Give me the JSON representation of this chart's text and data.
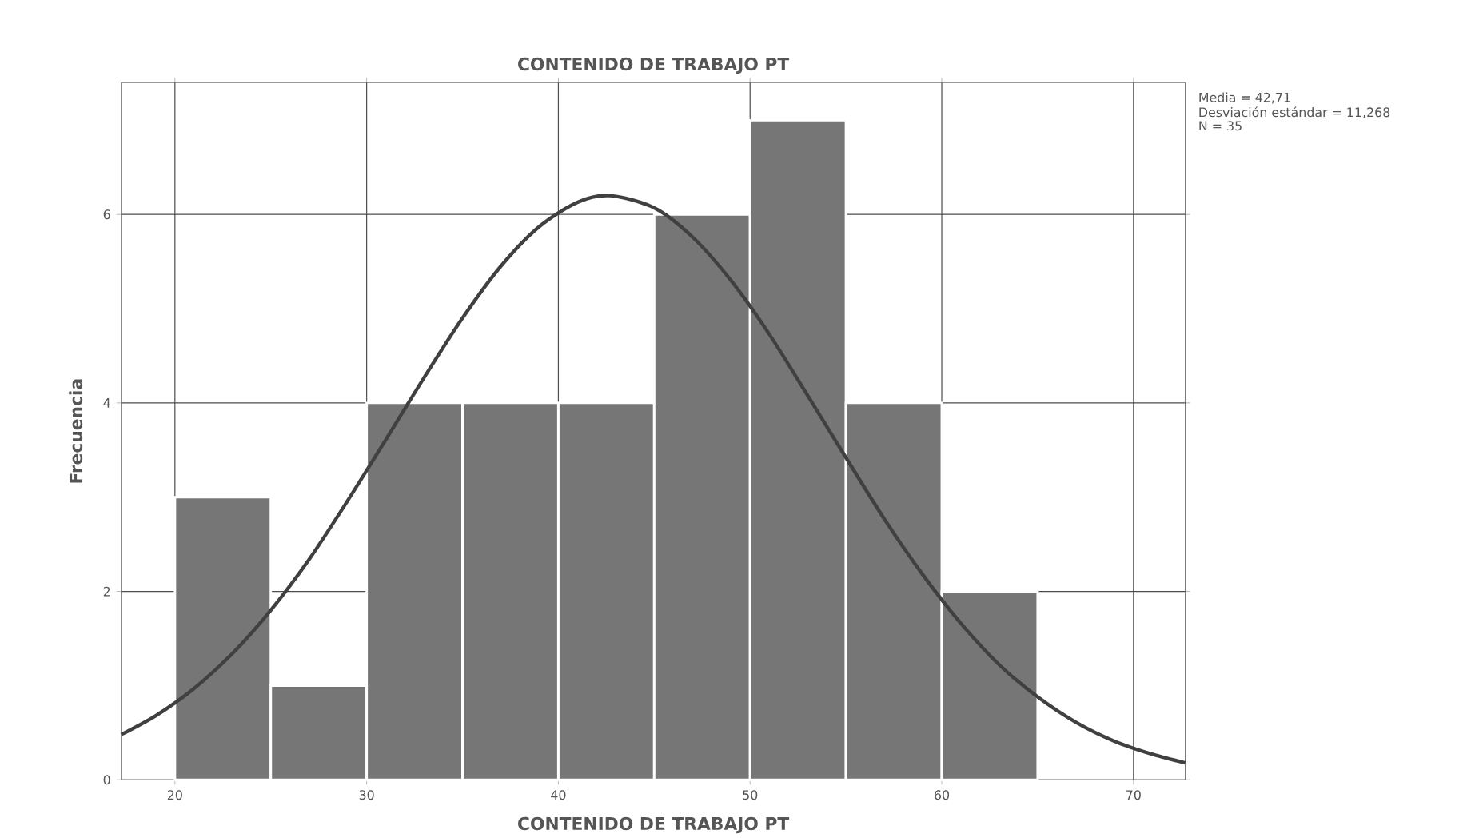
{
  "chart_data": {
    "type": "histogram",
    "title": "CONTENIDO DE TRABAJO PT",
    "xlabel": "CONTENIDO DE TRABAJO PT",
    "ylabel": "Frecuencia",
    "bins": [
      20,
      25,
      30,
      35,
      40,
      45,
      50,
      55,
      60,
      65
    ],
    "values": [
      3,
      1,
      4,
      4,
      4,
      6,
      7,
      4,
      2
    ],
    "color": "#767676",
    "series": [
      {
        "type": "line",
        "color": "#404040",
        "x": [
          17.2,
          19,
          21,
          23,
          25,
          27,
          29,
          31,
          33,
          35,
          37,
          39,
          41,
          42.7,
          45,
          47,
          49,
          51,
          53,
          55,
          57,
          59,
          61,
          63,
          65,
          67,
          69,
          71,
          72.7
        ],
        "values": [
          0.48,
          0.68,
          0.97,
          1.34,
          1.8,
          2.34,
          2.96,
          3.61,
          4.27,
          4.9,
          5.45,
          5.87,
          6.13,
          6.2,
          6.07,
          5.76,
          5.3,
          4.73,
          4.08,
          3.42,
          2.77,
          2.18,
          1.66,
          1.22,
          0.88,
          0.61,
          0.41,
          0.27,
          0.18
        ]
      }
    ],
    "xlim": [
      17.2,
      72.7
    ],
    "ylim": [
      0,
      7.4
    ],
    "xticks": [
      20,
      30,
      40,
      50,
      60,
      70
    ],
    "yticks": [
      0,
      2,
      4,
      6
    ],
    "grid": true,
    "annotations": [
      "Media = 42,71",
      "Desviación estándar = 11,268",
      "N = 35"
    ]
  }
}
